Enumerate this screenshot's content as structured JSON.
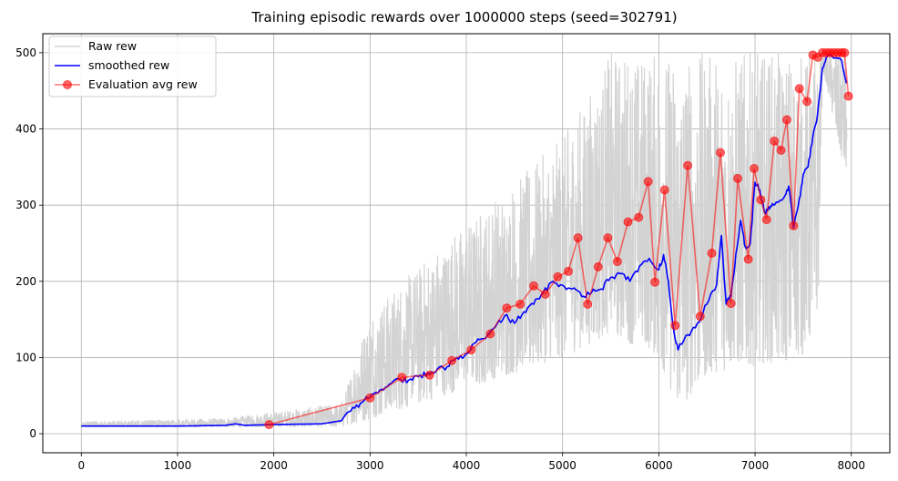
{
  "chart_data": {
    "type": "line",
    "title": "Training episodic rewards over 1000000 steps (seed=302791)",
    "xlabel": "",
    "ylabel": "",
    "xlim": [
      -400,
      8400
    ],
    "ylim": [
      -25,
      525
    ],
    "xticks": [
      0,
      1000,
      2000,
      3000,
      4000,
      5000,
      6000,
      7000,
      8000
    ],
    "yticks": [
      0,
      100,
      200,
      300,
      400,
      500
    ],
    "grid": true,
    "legend_position": "top-left",
    "colors": {
      "raw": "#d3d3d3",
      "smoothed": "#0000ff",
      "eval": "#ff0000"
    },
    "series": [
      {
        "name": "Raw rew",
        "style": "band",
        "x": [
          0,
          1500,
          2700,
          3000,
          3500,
          4000,
          4500,
          5000,
          5500,
          6000,
          6200,
          6500,
          7000,
          7500,
          7650,
          7700,
          7950
        ],
        "low": [
          9,
          9,
          9,
          20,
          40,
          60,
          80,
          100,
          130,
          100,
          30,
          80,
          90,
          100,
          150,
          480,
          330
        ],
        "high": [
          16,
          20,
          40,
          160,
          220,
          280,
          330,
          390,
          500,
          500,
          500,
          500,
          500,
          500,
          500,
          500,
          500
        ]
      },
      {
        "name": "smoothed rew",
        "style": "line",
        "x": [
          0,
          500,
          1000,
          1500,
          1600,
          1700,
          2000,
          2500,
          2700,
          2800,
          2900,
          3000,
          3100,
          3200,
          3300,
          3400,
          3500,
          3600,
          3700,
          3800,
          3900,
          4000,
          4100,
          4200,
          4300,
          4400,
          4500,
          4600,
          4700,
          4800,
          4900,
          5000,
          5100,
          5200,
          5300,
          5400,
          5500,
          5600,
          5700,
          5800,
          5900,
          6000,
          6050,
          6100,
          6150,
          6200,
          6300,
          6400,
          6500,
          6600,
          6650,
          6700,
          6750,
          6800,
          6850,
          6900,
          6950,
          7000,
          7050,
          7100,
          7150,
          7200,
          7300,
          7350,
          7400,
          7450,
          7500,
          7550,
          7600,
          7650,
          7700,
          7750,
          7800,
          7900,
          7950
        ],
        "y": [
          10,
          10,
          10,
          11,
          13,
          11,
          12,
          13,
          17,
          30,
          40,
          48,
          57,
          65,
          72,
          70,
          75,
          80,
          85,
          88,
          100,
          105,
          120,
          125,
          140,
          155,
          145,
          160,
          170,
          185,
          200,
          195,
          190,
          180,
          185,
          190,
          205,
          210,
          200,
          220,
          230,
          215,
          235,
          200,
          140,
          110,
          130,
          145,
          170,
          195,
          260,
          170,
          180,
          235,
          280,
          245,
          250,
          330,
          320,
          290,
          295,
          300,
          310,
          325,
          270,
          300,
          340,
          350,
          390,
          420,
          480,
          495,
          495,
          490,
          460
        ]
      },
      {
        "name": "Evaluation avg rew",
        "style": "line-marker",
        "x": [
          1950,
          3000,
          3330,
          3620,
          3850,
          4050,
          4250,
          4420,
          4560,
          4700,
          4820,
          4950,
          5060,
          5160,
          5260,
          5370,
          5470,
          5570,
          5680,
          5790,
          5890,
          5960,
          6060,
          6170,
          6300,
          6430,
          6550,
          6640,
          6750,
          6820,
          6930,
          6990,
          7060,
          7120,
          7200,
          7270,
          7330,
          7400,
          7460,
          7540,
          7600,
          7650,
          7700,
          7740,
          7780,
          7820,
          7860,
          7900,
          7930,
          7970
        ],
        "y": [
          12,
          47,
          74,
          77,
          96,
          110,
          131,
          165,
          170,
          194,
          183,
          206,
          213,
          257,
          170,
          219,
          257,
          226,
          278,
          284,
          331,
          199,
          320,
          142,
          352,
          154,
          237,
          369,
          171,
          335,
          229,
          348,
          307,
          281,
          384,
          372,
          412,
          273,
          453,
          436,
          497,
          494,
          500,
          500,
          500,
          500,
          500,
          500,
          500,
          443
        ]
      }
    ]
  }
}
